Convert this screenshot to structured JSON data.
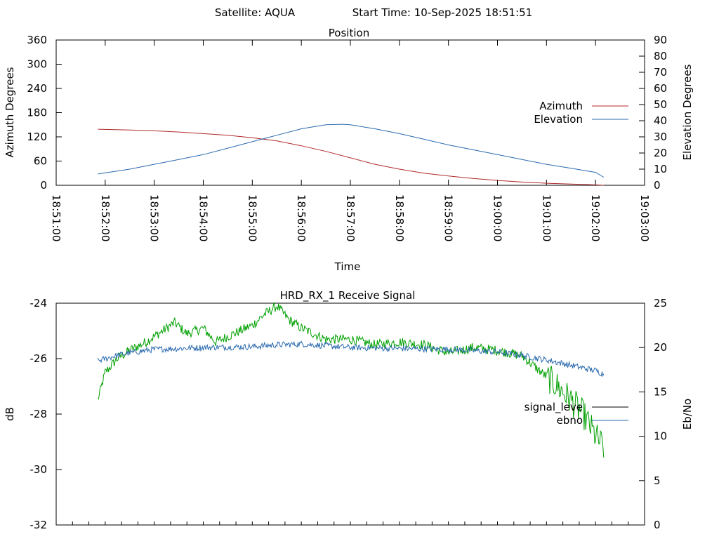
{
  "header": {
    "satellite": "Satellite: AQUA",
    "start_time": "Start Time: 10-Sep-2025 18:51:51"
  },
  "chart_data": [
    {
      "type": "line",
      "title": "Position",
      "xlabel": "Time",
      "ylabel": "Azimuth Degrees",
      "y2label": "Elevation Degrees",
      "x_ticks": [
        "18:51:00",
        "18:52:00",
        "18:53:00",
        "18:54:00",
        "18:55:00",
        "18:56:00",
        "18:57:00",
        "18:58:00",
        "18:59:00",
        "19:00:00",
        "19:01:00",
        "19:02:00",
        "19:03:00"
      ],
      "xlim": [
        "18:51:00",
        "19:03:00"
      ],
      "ylim": [
        0,
        360
      ],
      "y_ticks": [
        0,
        60,
        120,
        180,
        240,
        300,
        360
      ],
      "y2lim": [
        0,
        90
      ],
      "y2_ticks": [
        0,
        10,
        20,
        30,
        40,
        50,
        60,
        70,
        80,
        90
      ],
      "legend_position": "right",
      "series": [
        {
          "name": "Azimuth",
          "axis": "left",
          "color": "#b02a2a",
          "x": [
            "18:51:51",
            "18:52:30",
            "18:53:00",
            "18:53:30",
            "18:54:00",
            "18:54:30",
            "18:55:00",
            "18:55:30",
            "18:56:00",
            "18:56:30",
            "18:57:00",
            "18:57:30",
            "18:58:00",
            "18:58:30",
            "18:59:00",
            "18:59:30",
            "19:00:00",
            "19:00:30",
            "19:01:00",
            "19:01:30",
            "19:02:00",
            "19:02:10"
          ],
          "values": [
            139,
            137,
            135,
            132,
            128,
            124,
            118,
            110,
            98,
            84,
            68,
            52,
            40,
            30,
            23,
            17,
            12,
            8,
            5,
            3,
            1,
            0
          ]
        },
        {
          "name": "Elevation",
          "axis": "right",
          "color": "#2a6aae",
          "x": [
            "18:51:51",
            "18:52:30",
            "18:53:00",
            "18:53:30",
            "18:54:00",
            "18:54:30",
            "18:55:00",
            "18:55:30",
            "18:56:00",
            "18:56:30",
            "18:56:50",
            "18:57:00",
            "18:57:30",
            "18:58:00",
            "18:58:30",
            "18:59:00",
            "18:59:30",
            "19:00:00",
            "19:00:30",
            "19:01:00",
            "19:01:30",
            "19:02:00",
            "19:02:10"
          ],
          "values": [
            7,
            10,
            13,
            16,
            19,
            23,
            27,
            31,
            35,
            37.5,
            37.8,
            37.5,
            35,
            32,
            28.5,
            25,
            22,
            19,
            16,
            13,
            10.5,
            8,
            5
          ]
        }
      ]
    },
    {
      "type": "line",
      "title": "HRD_RX_1 Receive Signal",
      "ylabel": "dB",
      "y2label": "Eb/No",
      "xlim": [
        "18:51:00",
        "19:03:00"
      ],
      "ylim": [
        -32,
        -24
      ],
      "y_ticks": [
        -32,
        -30,
        -28,
        -26,
        -24
      ],
      "y2lim": [
        0,
        25
      ],
      "y2_ticks": [
        0,
        5,
        10,
        15,
        20,
        25
      ],
      "legend_position": "right",
      "series": [
        {
          "name": "signal_level",
          "legend_label": "signal_leve",
          "legend_color": "#000000",
          "axis": "left",
          "color": "#00a000",
          "x": [
            "18:51:51",
            "18:52:00",
            "18:52:15",
            "18:52:30",
            "18:52:50",
            "18:53:10",
            "18:53:25",
            "18:53:40",
            "18:54:00",
            "18:54:15",
            "18:54:30",
            "18:54:45",
            "18:55:00",
            "18:55:15",
            "18:55:30",
            "18:55:45",
            "18:56:00",
            "18:56:15",
            "18:56:30",
            "18:57:00",
            "18:57:30",
            "18:58:00",
            "18:58:30",
            "18:59:00",
            "18:59:30",
            "19:00:00",
            "19:00:30",
            "19:00:50",
            "19:01:10",
            "19:01:30",
            "19:01:45",
            "19:02:00",
            "19:02:10"
          ],
          "values": [
            -27.5,
            -26.5,
            -26.0,
            -25.7,
            -25.4,
            -25.0,
            -24.7,
            -25.1,
            -24.9,
            -25.4,
            -25.2,
            -25.0,
            -24.8,
            -24.4,
            -24.1,
            -24.6,
            -24.9,
            -25.1,
            -25.3,
            -25.3,
            -25.5,
            -25.4,
            -25.5,
            -25.8,
            -25.6,
            -25.7,
            -25.9,
            -26.4,
            -26.9,
            -27.5,
            -28.0,
            -28.8,
            -29.2
          ]
        },
        {
          "name": "ebno",
          "legend_label": "ebno",
          "legend_color": "#2a6aae",
          "axis": "right",
          "color": "#2a6aae",
          "x": [
            "18:51:51",
            "18:52:10",
            "18:52:30",
            "18:53:00",
            "18:54:00",
            "18:55:00",
            "18:55:30",
            "18:56:00",
            "18:56:30",
            "18:57:00",
            "18:58:00",
            "18:59:00",
            "19:00:00",
            "19:00:30",
            "19:01:00",
            "19:01:30",
            "19:02:00",
            "19:02:10"
          ],
          "values": [
            18.5,
            19.0,
            19.4,
            19.8,
            20.0,
            20.1,
            20.3,
            20.4,
            20.2,
            20.0,
            19.9,
            19.8,
            19.5,
            19.1,
            18.6,
            18.0,
            17.4,
            17.0
          ]
        }
      ]
    }
  ]
}
